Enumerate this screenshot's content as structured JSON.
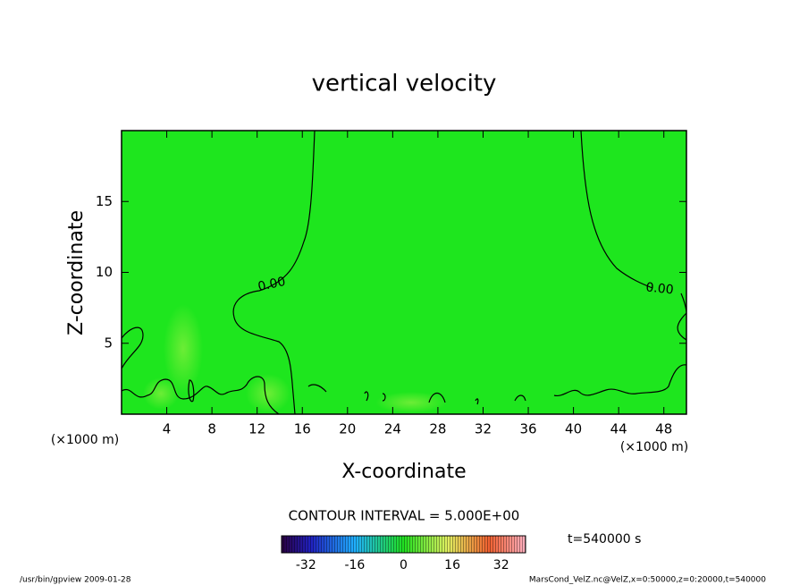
{
  "chart_data": {
    "type": "contour",
    "title": "vertical velocity",
    "x_label": "X-coordinate",
    "y_label": "Z-coordinate",
    "x_unit_label": "(×1000 m)",
    "xlim": [
      0,
      50
    ],
    "xticks": [
      4,
      8,
      12,
      16,
      20,
      24,
      28,
      32,
      36,
      40,
      44,
      48
    ],
    "ylim": [
      0,
      20
    ],
    "yticks": [
      5,
      10,
      15
    ],
    "field_color": "#1ee61e",
    "contour_level": {
      "value": 0,
      "label": "0.00"
    },
    "contour_interval": "CONTOUR INTERVAL = 5.000E+00",
    "colorbar": {
      "lim": [
        -40,
        40
      ],
      "ticks": [
        -32,
        -16,
        0,
        16,
        32
      ]
    },
    "time_label": "t=540000 s",
    "footer_left": "/usr/bin/gpview   2009-01-28",
    "footer_right": "MarsCond_VelZ.nc@VelZ,x=0:50000,z=0:20000,t=540000"
  }
}
